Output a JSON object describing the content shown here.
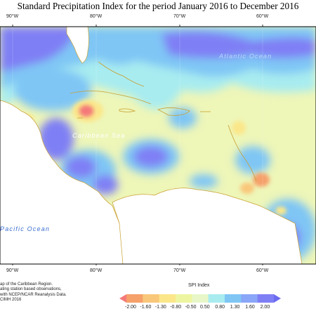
{
  "title": "Standard Precipitation Index for the period January 2016 to December 2016",
  "axes": {
    "top_ticks": [
      "90°W",
      "80°W",
      "70°W",
      "60°W"
    ],
    "bottom_ticks": [
      "90°W",
      "80°W",
      "70°W",
      "60°W"
    ]
  },
  "places": {
    "ocean_atlantic": "Atlantic Ocean",
    "sea_caribbean": "Caribbean Sea",
    "ocean_pacific": "Pacific Ocean"
  },
  "credits": {
    "line1": "ap of the Caribbean Region.",
    "line2": "ating station based observations,",
    "line3": "with NCEP/NCAR Reanalysis Data.",
    "line4": "CIMH 2016"
  },
  "legend": {
    "title": "SPI Index",
    "labels": [
      "-2.00",
      "-1.60",
      "-1.30",
      "-0.80",
      "-0.50",
      "0.50",
      "0.80",
      "1.30",
      "1.60",
      "2.00"
    ],
    "colors": [
      "#f47a7a",
      "#f6a06a",
      "#f9c77a",
      "#fbe78a",
      "#eef5a0",
      "#e8f6c8",
      "#a8ecf0",
      "#7fc6f5",
      "#8aa6f8",
      "#7f7ff5",
      "#6b6bf0"
    ]
  }
}
